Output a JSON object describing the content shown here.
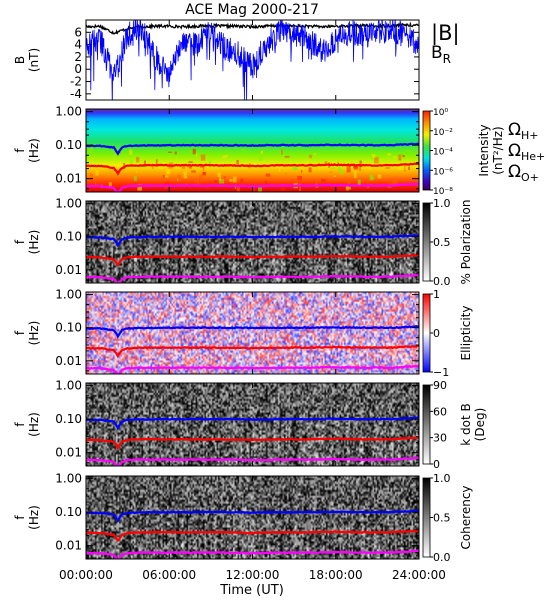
{
  "chart_data": [
    {
      "type": "line",
      "title": "ACE Mag 2000-217",
      "ylabel": "B",
      "yunit": "(nT)",
      "ylim": [
        -5,
        8
      ],
      "yticks": [
        -4,
        -2,
        0,
        2,
        4,
        6
      ],
      "xlim": [
        0,
        24
      ],
      "legend_position": "right",
      "series": [
        {
          "name": "|B|",
          "color": "#000000",
          "x": [
            0,
            1,
            2,
            3,
            4,
            5,
            6,
            7,
            8,
            9,
            10,
            11,
            12,
            13,
            14,
            15,
            16,
            17,
            18,
            19,
            20,
            21,
            22,
            23,
            24
          ],
          "values": [
            6.9,
            7.0,
            5.9,
            6.6,
            6.9,
            7.0,
            7.0,
            6.9,
            7.0,
            7.1,
            7.0,
            7.0,
            6.9,
            7.0,
            7.1,
            7.0,
            7.0,
            6.9,
            7.0,
            7.0,
            7.1,
            7.0,
            7.1,
            7.2,
            7.1
          ]
        },
        {
          "name": "B",
          "subscript": "R",
          "color": "#0000ff",
          "x": [
            0,
            1,
            2,
            3,
            4,
            5,
            6,
            7,
            8,
            9,
            10,
            11,
            12,
            13,
            14,
            15,
            16,
            17,
            18,
            19,
            20,
            21,
            22,
            23,
            24
          ],
          "values": [
            3.5,
            5.0,
            -1.0,
            5.5,
            6.5,
            2.0,
            -1.0,
            5.0,
            4.0,
            6.0,
            3.5,
            2.5,
            0.5,
            4.0,
            6.5,
            5.5,
            5.0,
            3.0,
            4.5,
            6.0,
            5.5,
            6.0,
            6.5,
            5.5,
            4.0
          ]
        }
      ]
    },
    {
      "type": "heatmap",
      "ylabel": "f",
      "yunit": "(Hz)",
      "scale": "log",
      "ylim": [
        0.004,
        1.2
      ],
      "yticks": [
        "1.00",
        "0.10",
        "0.01"
      ],
      "colorbar": {
        "label": "Intensity",
        "unit": "(nT²/Hz)",
        "ticks": [
          "10⁰",
          "10⁻²",
          "10⁻⁴",
          "10⁻⁶",
          "10⁻⁸"
        ]
      },
      "legend": [
        {
          "symbol": "Ω",
          "sub": "H+",
          "color": "#0000ff"
        },
        {
          "symbol": "Ω",
          "sub": "He+",
          "color": "#ff0000"
        },
        {
          "symbol": "Ω",
          "sub": "O+",
          "color": "#ff00ff"
        }
      ]
    },
    {
      "type": "heatmap",
      "ylabel": "f",
      "yunit": "(Hz)",
      "scale": "log",
      "yticks": [
        "1.00",
        "0.10",
        "0.01"
      ],
      "colorbar": {
        "label": "% Polarization",
        "ticks": [
          "1.0",
          "0.5",
          "0.0"
        ]
      }
    },
    {
      "type": "heatmap",
      "ylabel": "f",
      "yunit": "(Hz)",
      "scale": "log",
      "yticks": [
        "1.00",
        "0.10",
        "0.01"
      ],
      "colorbar": {
        "label": "Ellipticity",
        "ticks": [
          "1",
          "0",
          "−1"
        ]
      }
    },
    {
      "type": "heatmap",
      "ylabel": "f",
      "yunit": "(Hz)",
      "scale": "log",
      "yticks": [
        "1.00",
        "0.10",
        "0.01"
      ],
      "colorbar": {
        "label": "k dot B",
        "unit": "(Deg)",
        "ticks": [
          "90",
          "60",
          "30",
          "0"
        ]
      }
    },
    {
      "type": "heatmap",
      "ylabel": "f",
      "yunit": "(Hz)",
      "scale": "log",
      "yticks": [
        "1.00",
        "0.10",
        "0.01"
      ],
      "colorbar": {
        "label": "Coherency",
        "ticks": [
          "1.0",
          "0.5",
          "0.0"
        ]
      }
    }
  ],
  "x_axis": {
    "label": "Time (UT)",
    "ticks": [
      "00:00:00",
      "06:00:00",
      "12:00:00",
      "18:00:00",
      "24:00:00"
    ]
  },
  "cyclotron_lines": {
    "x": [
      0,
      1,
      2,
      2.3,
      2.6,
      3,
      4,
      6,
      8,
      10,
      12,
      14,
      16,
      18,
      20,
      22,
      24
    ],
    "H+": [
      0.095,
      0.095,
      0.085,
      0.055,
      0.085,
      0.095,
      0.098,
      0.1,
      0.1,
      0.1,
      0.098,
      0.1,
      0.1,
      0.102,
      0.1,
      0.1,
      0.11
    ],
    "He+": [
      0.024,
      0.024,
      0.021,
      0.014,
      0.021,
      0.024,
      0.025,
      0.025,
      0.025,
      0.025,
      0.024,
      0.025,
      0.025,
      0.026,
      0.025,
      0.025,
      0.028
    ],
    "O+": [
      0.006,
      0.006,
      0.0053,
      0.0035,
      0.0053,
      0.006,
      0.0062,
      0.0062,
      0.0062,
      0.0062,
      0.006,
      0.0062,
      0.0062,
      0.0064,
      0.0062,
      0.0062,
      0.007
    ]
  }
}
